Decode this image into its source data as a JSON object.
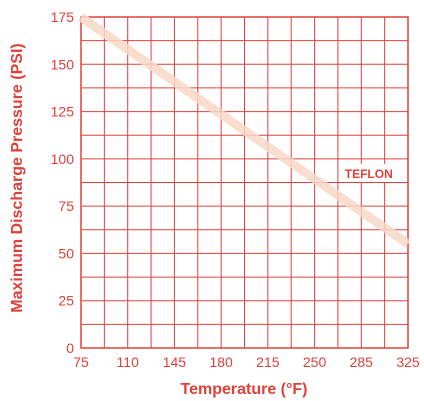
{
  "chart_data": {
    "type": "line",
    "xlabel": "Temperature (°F)",
    "ylabel": "Maximum Discharge Pressure (PSI)",
    "xlim": [
      75,
      325
    ],
    "ylim": [
      0,
      175
    ],
    "x_ticks": [
      "75",
      "110",
      "145",
      "180",
      "215",
      "250",
      "285",
      "325"
    ],
    "y_ticks": [
      "0",
      "25",
      "50",
      "75",
      "100",
      "125",
      "150",
      "175"
    ],
    "grid": true,
    "series": [
      {
        "name": "TEFLON",
        "x": [
          75,
          325
        ],
        "y": [
          175,
          55
        ]
      }
    ],
    "annotations": [
      {
        "text": "TEFLON",
        "x": 295,
        "y": 92
      }
    ],
    "colors": {
      "axis": "#e0403a",
      "grid": "#e0403a",
      "line": "#f8d8c8"
    }
  }
}
